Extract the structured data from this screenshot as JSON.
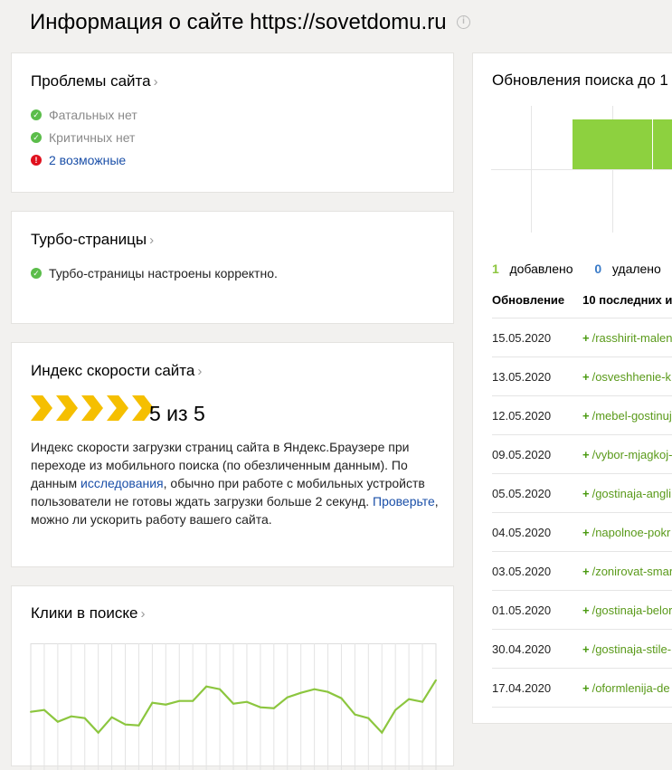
{
  "header": {
    "title": "Информация о сайте https://sovetdomu.ru",
    "info_icon": "info-icon"
  },
  "problems": {
    "title": "Проблемы сайта",
    "items": [
      {
        "text": "Фатальных нет",
        "status": "ok"
      },
      {
        "text": "Критичных нет",
        "status": "ok"
      },
      {
        "text": "2 возможные",
        "status": "error"
      }
    ]
  },
  "turbo": {
    "title": "Турбо-страницы",
    "status": "Турбо-страницы настроены корректно."
  },
  "speed": {
    "title": "Индекс скорости сайта",
    "score": "5 из 5",
    "score_value": 5,
    "score_max": 5,
    "desc_1": "Индекс скорости загрузки страниц сайта в Яндекс.Браузере при переходе из мобильного поиска (по обезличенным данным). По данным ",
    "link_1": "исследования",
    "desc_2": ", обычно при работе с мобильных устройств пользователи не готовы ждать загрузки больше 2 секунд. ",
    "link_2": "Проверьте",
    "desc_3": ", можно ли ускорить работу вашего сайта."
  },
  "clicks": {
    "title": "Клики в поиске",
    "line_color": "#8cc63f",
    "values": [
      41,
      43,
      30,
      36,
      34,
      18,
      35,
      27,
      26,
      51,
      49,
      53,
      53,
      69,
      66,
      50,
      52,
      46,
      45,
      57,
      62,
      66,
      63,
      56,
      38,
      34,
      18,
      43,
      55,
      52,
      76
    ]
  },
  "updates": {
    "title": "Обновления поиска до 1",
    "bar_color": "#8dd13f",
    "added_count": "1",
    "added_label": "добавлено",
    "removed_count": "0",
    "removed_label": "удалено",
    "col_date": "Обновление",
    "col_urls": "10 последних и",
    "rows": [
      {
        "date": "15.05.2020",
        "url": "/rasshirit-malen"
      },
      {
        "date": "13.05.2020",
        "url": "/osveshhenie-k"
      },
      {
        "date": "12.05.2020",
        "url": "/mebel-gostinuj"
      },
      {
        "date": "09.05.2020",
        "url": "/vybor-mjagkoj-"
      },
      {
        "date": "05.05.2020",
        "url": "/gostinaja-angli"
      },
      {
        "date": "04.05.2020",
        "url": "/napolnoe-pokr"
      },
      {
        "date": "03.05.2020",
        "url": "/zonirovat-smar"
      },
      {
        "date": "01.05.2020",
        "url": "/gostinaja-belor"
      },
      {
        "date": "30.04.2020",
        "url": "/gostinaja-stile-"
      },
      {
        "date": "17.04.2020",
        "url": "/oformlenija-de"
      }
    ]
  }
}
